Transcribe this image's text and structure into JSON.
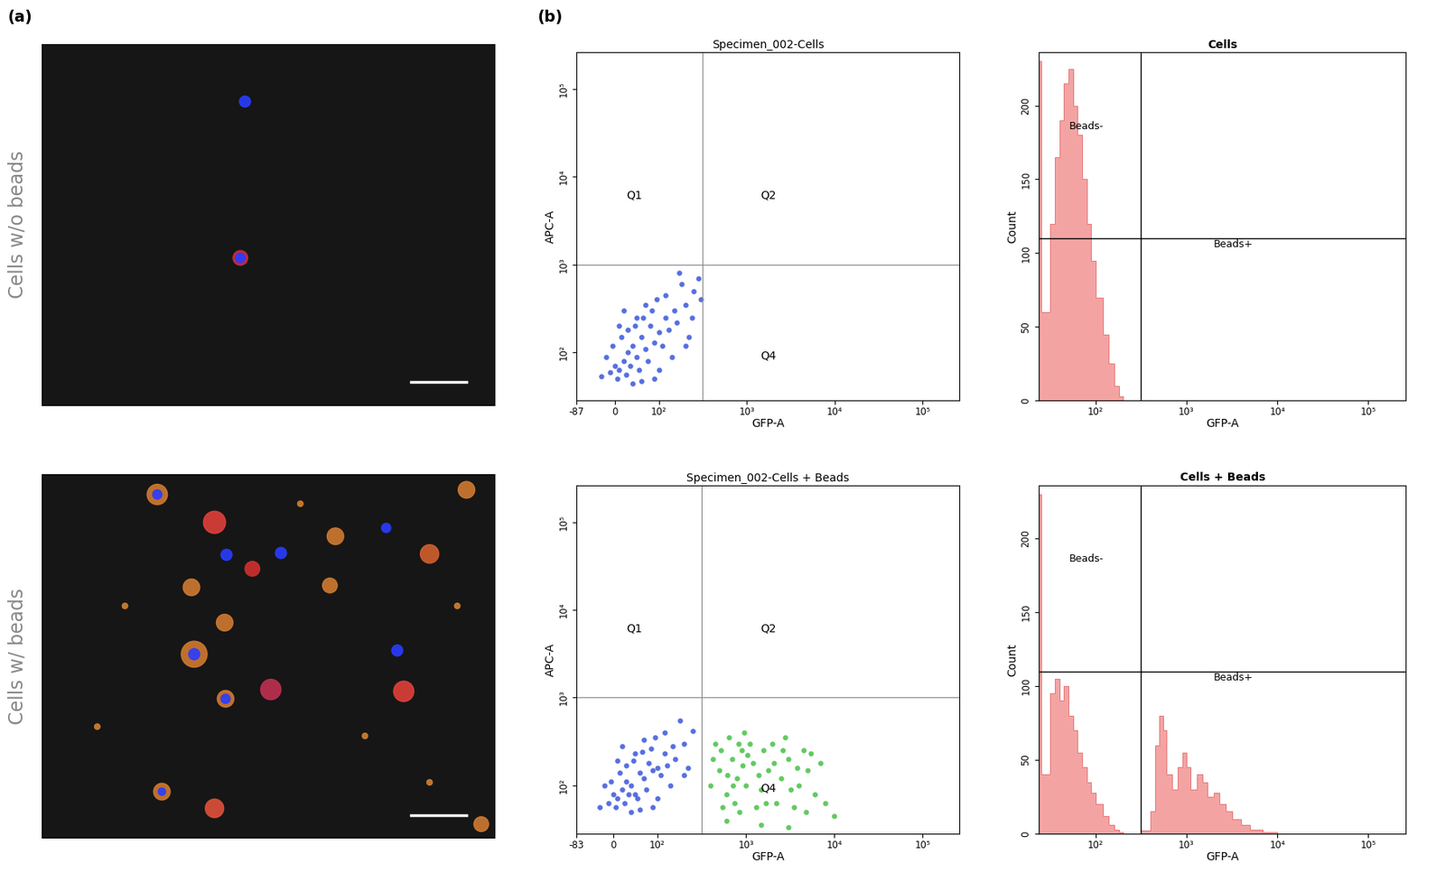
{
  "panel_labels": [
    "(a)",
    "(b)"
  ],
  "images": [
    {
      "row_label": "Cells w/o beads"
    },
    {
      "row_label": "Cells w/ beads"
    }
  ],
  "chart_data": [
    {
      "type": "scatter",
      "title": "Specimen_002-Cells",
      "x_label": "GFP-A",
      "y_label": "APC-A",
      "log": true,
      "xlim": [
        -87,
        262144
      ],
      "ylim": [
        -10,
        262144
      ],
      "xticks": [
        -87,
        0,
        {
          "value": 100,
          "label": "10²"
        },
        {
          "value": 1000,
          "label": "10³"
        },
        {
          "value": 10000,
          "label": "10⁴"
        },
        {
          "value": 100000,
          "label": "10⁵"
        }
      ],
      "yticks": [
        {
          "value": 100,
          "label": "10²"
        },
        {
          "value": 1000,
          "label": "10³"
        },
        {
          "value": 10000,
          "label": "10⁴"
        },
        {
          "value": 100000,
          "label": "10⁵"
        }
      ],
      "gate": {
        "x": 316,
        "y": 1000
      },
      "quadrants": [
        "Q1",
        "Q2",
        "Q4"
      ],
      "series": [
        {
          "color": "#1f3fd6",
          "x": [
            10,
            20,
            30,
            40,
            50,
            60,
            70,
            80,
            90,
            100,
            120,
            150,
            5,
            15,
            25,
            35,
            45,
            55,
            65,
            75,
            85,
            95,
            110,
            130,
            160,
            200,
            250,
            180,
            0,
            -10,
            -30,
            -5,
            40,
            60,
            100,
            140,
            220,
            280,
            300,
            120,
            70,
            50,
            30,
            20,
            10,
            -20,
            90,
            200,
            170,
            240
          ],
          "y": [
            60,
            80,
            100,
            120,
            90,
            150,
            110,
            200,
            130,
            170,
            250,
            300,
            40,
            150,
            50,
            70,
            200,
            60,
            250,
            80,
            300,
            400,
            120,
            180,
            220,
            350,
            500,
            600,
            70,
            55,
            45,
            120,
            30,
            35,
            60,
            90,
            150,
            700,
            400,
            450,
            350,
            250,
            180,
            300,
            200,
            90,
            40,
            120,
            800,
            250
          ]
        }
      ]
    },
    {
      "type": "histogram",
      "title": "Cells",
      "x_label": "GFP-A",
      "y_label": "Count",
      "log": "x",
      "xlim": [
        -25,
        262144
      ],
      "ylim": [
        0,
        236
      ],
      "xticks": [
        {
          "value": 100,
          "label": "10²"
        },
        {
          "value": 1000,
          "label": "10³"
        },
        {
          "value": 10000,
          "label": "10⁴"
        },
        {
          "value": 100000,
          "label": "10⁵"
        }
      ],
      "yticks": [
        0,
        50,
        100,
        150,
        200
      ],
      "gate": {
        "x": 316,
        "y": 110
      },
      "gate_labels": [
        "Beads-",
        "Beads+"
      ],
      "color": "#f4a3a3",
      "bins": [
        -25,
        -20,
        0,
        10,
        20,
        30,
        40,
        50,
        60,
        70,
        80,
        90,
        100,
        120,
        140,
        160,
        180,
        200
      ],
      "counts": [
        230,
        60,
        120,
        165,
        190,
        215,
        225,
        200,
        180,
        150,
        120,
        95,
        70,
        45,
        25,
        10,
        3
      ]
    },
    {
      "type": "scatter",
      "title": "Specimen_002-Cells + Beads",
      "x_label": "GFP-A",
      "y_label": "APC-A",
      "log": true,
      "xlim": [
        -83,
        262144
      ],
      "ylim": [
        -10,
        262144
      ],
      "xticks": [
        -83,
        0,
        {
          "value": 100,
          "label": "10²"
        },
        {
          "value": 1000,
          "label": "10³"
        },
        {
          "value": 10000,
          "label": "10⁴"
        },
        {
          "value": 100000,
          "label": "10⁵"
        }
      ],
      "yticks": [
        {
          "value": 100,
          "label": "10²"
        },
        {
          "value": 1000,
          "label": "10³"
        },
        {
          "value": 10000,
          "label": "10⁴"
        },
        {
          "value": 100000,
          "label": "10⁵"
        }
      ],
      "gate": {
        "x": 316,
        "y": 1000
      },
      "quadrants": [
        "Q1",
        "Q2",
        "Q4"
      ],
      "series": [
        {
          "color": "#1f3fd6",
          "x": [
            10,
            20,
            30,
            40,
            50,
            60,
            70,
            80,
            90,
            100,
            120,
            150,
            5,
            15,
            25,
            35,
            45,
            55,
            65,
            75,
            85,
            95,
            110,
            130,
            160,
            200,
            250,
            180,
            0,
            -10,
            -30,
            -5,
            40,
            60,
            100,
            140,
            220,
            120,
            70,
            50,
            30,
            20,
            10,
            -20,
            90,
            200
          ],
          "y": [
            70,
            90,
            110,
            100,
            80,
            140,
            120,
            180,
            150,
            160,
            230,
            280,
            50,
            140,
            60,
            80,
            190,
            70,
            240,
            90,
            260,
            350,
            130,
            170,
            200,
            300,
            420,
            550,
            80,
            60,
            50,
            110,
            40,
            45,
            70,
            100,
            160,
            400,
            330,
            230,
            170,
            280,
            190,
            100,
            50,
            130
          ]
        },
        {
          "color": "#2db82d",
          "x": [
            400,
            500,
            600,
            700,
            800,
            900,
            1000,
            1200,
            1500,
            1800,
            2000,
            2500,
            3000,
            4000,
            5000,
            6000,
            8000,
            450,
            550,
            650,
            750,
            850,
            950,
            1100,
            1300,
            1600,
            2200,
            2800,
            3500,
            4500,
            7000,
            10000,
            420,
            520,
            620,
            720,
            820,
            920,
            1050,
            1400,
            1700,
            2100,
            2600,
            3200,
            3800,
            4800,
            5500,
            600,
            1500,
            3000
          ],
          "y": [
            100,
            150,
            80,
            200,
            120,
            250,
            100,
            180,
            90,
            150,
            300,
            120,
            200,
            100,
            150,
            80,
            60,
            300,
            50,
            350,
            60,
            40,
            400,
            300,
            50,
            250,
            60,
            350,
            50,
            250,
            180,
            30,
            200,
            250,
            130,
            100,
            300,
            170,
            220,
            130,
            60,
            180,
            250,
            90,
            160,
            40,
            230,
            20,
            10,
            5
          ]
        }
      ]
    },
    {
      "type": "histogram",
      "title": "Cells + Beads",
      "x_label": "GFP-A",
      "y_label": "Count",
      "log": "x",
      "xlim": [
        -25,
        262144
      ],
      "ylim": [
        0,
        236
      ],
      "xticks": [
        {
          "value": 100,
          "label": "10²"
        },
        {
          "value": 1000,
          "label": "10³"
        },
        {
          "value": 10000,
          "label": "10⁴"
        },
        {
          "value": 100000,
          "label": "10⁵"
        }
      ],
      "yticks": [
        0,
        50,
        100,
        150,
        200
      ],
      "gate": {
        "x": 316,
        "y": 110
      },
      "gate_labels": [
        "Beads-",
        "Beads+"
      ],
      "color": "#f4a3a3",
      "bins": [
        -25,
        -20,
        0,
        10,
        20,
        30,
        40,
        50,
        60,
        70,
        80,
        90,
        100,
        120,
        140,
        160,
        180,
        200,
        316,
        400,
        450,
        500,
        550,
        600,
        700,
        800,
        900,
        1000,
        1100,
        1300,
        1500,
        1700,
        2000,
        2300,
        2700,
        3200,
        4000,
        5000,
        7000,
        10000,
        15000
      ],
      "counts": [
        230,
        40,
        95,
        105,
        90,
        100,
        80,
        70,
        55,
        45,
        35,
        28,
        20,
        12,
        6,
        3,
        1,
        0,
        2,
        15,
        60,
        80,
        70,
        40,
        30,
        45,
        55,
        45,
        30,
        40,
        35,
        25,
        28,
        20,
        15,
        10,
        6,
        3,
        1,
        0
      ]
    }
  ]
}
